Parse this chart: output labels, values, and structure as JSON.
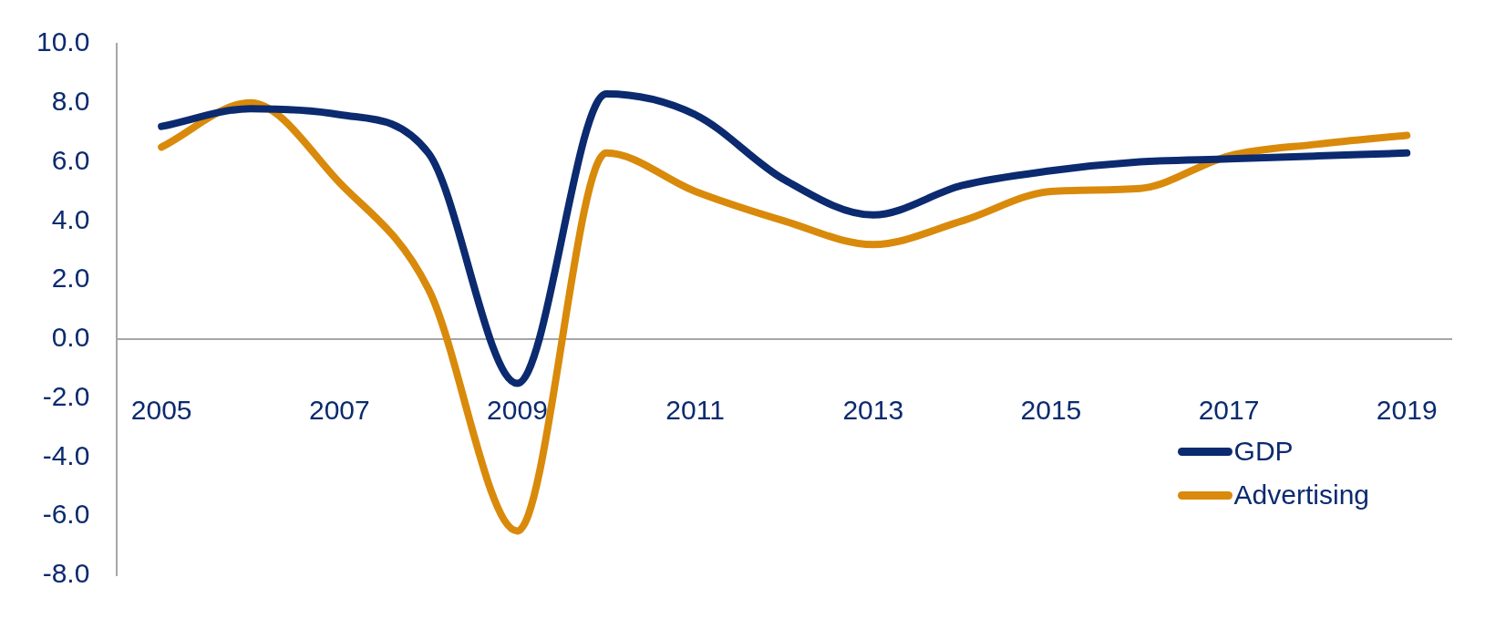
{
  "chart_data": {
    "type": "line",
    "categories": [
      "2005",
      null,
      "2007",
      null,
      "2009",
      null,
      "2011",
      null,
      "2013",
      null,
      "2015",
      null,
      "2017",
      null,
      "2019"
    ],
    "series": [
      {
        "name": "GDP",
        "color": "#0b2a6f",
        "values": [
          7.2,
          7.8,
          7.6,
          6.3,
          -1.5,
          8.3,
          7.6,
          5.4,
          4.2,
          5.2,
          5.7,
          6.0,
          6.1,
          6.2,
          6.3
        ]
      },
      {
        "name": "Advertising",
        "color": "#d98a0b",
        "values": [
          6.5,
          8.0,
          5.3,
          1.7,
          -6.5,
          6.3,
          5.0,
          4.0,
          3.2,
          4.0,
          5.0,
          5.1,
          6.2,
          6.6,
          6.9
        ]
      }
    ],
    "ylim": [
      -8,
      10
    ],
    "yticks": [
      {
        "value": -8,
        "label": "-8.0"
      },
      {
        "value": -6,
        "label": "-6.0"
      },
      {
        "value": -4,
        "label": "-4.0"
      },
      {
        "value": -2,
        "label": "-2.0"
      },
      {
        "value": 0,
        "label": "0.0"
      },
      {
        "value": 2,
        "label": "2.0"
      },
      {
        "value": 4,
        "label": "4.0"
      },
      {
        "value": 6,
        "label": "6.0"
      },
      {
        "value": 8,
        "label": "8.0"
      },
      {
        "value": 10,
        "label": "10.0"
      }
    ],
    "grid": false,
    "legend": "bottom right",
    "marker": "none",
    "line_style": "solid"
  }
}
